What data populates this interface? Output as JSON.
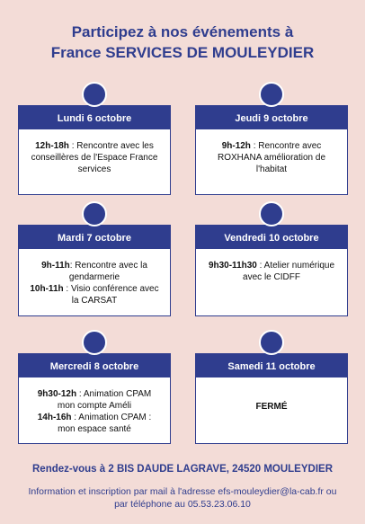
{
  "header": {
    "title_line1": "Participez à nos événements à",
    "title_line2": "France SERVICES DE MOULEYDIER"
  },
  "events": [
    {
      "day": "Lundi 6 octobre",
      "items": [
        {
          "time": "12h-18h",
          "text": " : Rencontre avec les conseillères de l'Espace France services"
        }
      ]
    },
    {
      "day": "Jeudi 9 octobre",
      "items": [
        {
          "time": "9h-12h",
          "text": " : Rencontre avec ROXHANA amélioration de l'habitat"
        }
      ]
    },
    {
      "day": "Mardi 7 octobre",
      "items": [
        {
          "time": "9h-11h",
          "text": ": Rencontre avec la gendarmerie"
        },
        {
          "time": "10h-11h",
          "text": " : Visio conférence avec la CARSAT"
        }
      ]
    },
    {
      "day": "Vendredi 10 octobre",
      "items": [
        {
          "time": "9h30-11h30",
          "text": " : Atelier numérique avec le CIDFF"
        }
      ]
    },
    {
      "day": "Mercredi 8 octobre",
      "items": [
        {
          "time": "9h30-12h",
          "text": " : Animation CPAM mon compte Améli"
        },
        {
          "time": "14h-16h",
          "text": " : Animation CPAM : mon espace santé"
        }
      ]
    },
    {
      "day": "Samedi 11 octobre",
      "items": [
        {
          "time": "FERMÉ"
        }
      ]
    }
  ],
  "footer": {
    "address": "Rendez-vous à 2 BIS DAUDE LAGRAVE, 24520 MOULEYDIER",
    "info": "Information et inscription par mail à l'adresse efs-mouleydier@la-cab.fr ou par téléphone au 05.53.23.06.10"
  }
}
